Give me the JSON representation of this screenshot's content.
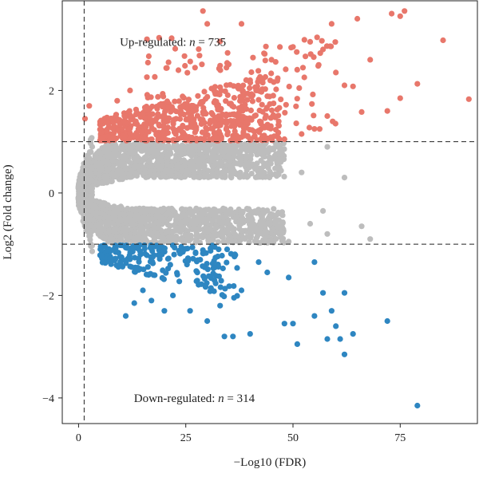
{
  "chart_data": {
    "type": "scatter",
    "title": "",
    "xlabel": "−Log10 (FDR)",
    "ylabel": "Log2 (Fold change)",
    "xlim": [
      -3.8,
      93.0
    ],
    "ylim": [
      -4.5,
      3.75
    ],
    "x_ticks": [
      0,
      25,
      50,
      75
    ],
    "x_tick_labels": [
      "0",
      "25",
      "50",
      "75"
    ],
    "y_ticks": [
      2,
      0,
      -2,
      -4
    ],
    "y_tick_labels": [
      "2",
      "0",
      "−2",
      "−4"
    ],
    "grid": false,
    "legend": "none",
    "thresholds": {
      "fold_change_log2": [
        -1,
        1
      ],
      "fdr_neg_log10": 1.3
    },
    "annotations": {
      "up": {
        "prefix": "Up-regulated: ",
        "n_symbol": "n",
        "equals": " = ",
        "count": "735"
      },
      "down": {
        "prefix": "Down-regulated: ",
        "n_symbol": "n",
        "equals": " = ",
        "count": "314"
      }
    },
    "colors": {
      "up": "#e8776b",
      "down": "#2e86c1",
      "not_significant": "#bdbdbd",
      "threshold_line": "#222222",
      "axis": "#222222"
    },
    "series": [
      {
        "key": "up",
        "count": 735,
        "highlighted_points": [
          [
            29,
            3.55
          ],
          [
            30,
            3.3
          ],
          [
            38,
            3.3
          ],
          [
            76,
            3.55
          ],
          [
            75,
            3.45
          ],
          [
            73,
            3.5
          ],
          [
            65,
            3.4
          ],
          [
            59,
            3.3
          ],
          [
            85,
            2.98
          ],
          [
            91,
            1.83
          ],
          [
            79,
            2.13
          ],
          [
            75,
            1.85
          ],
          [
            64,
            2.08
          ],
          [
            68,
            2.6
          ],
          [
            72,
            1.6
          ],
          [
            66,
            1.58
          ],
          [
            50,
            2.85
          ],
          [
            54,
            2.95
          ],
          [
            57,
            2.8
          ],
          [
            56,
            2.5
          ],
          [
            60,
            2.35
          ],
          [
            62,
            2.1
          ],
          [
            58,
            1.5
          ],
          [
            1.5,
            1.45
          ],
          [
            2.5,
            1.7
          ],
          [
            9,
            1.8
          ],
          [
            12,
            2.0
          ],
          [
            48,
            1.05
          ],
          [
            52,
            1.15
          ],
          [
            55,
            1.25
          ],
          [
            45,
            2.6
          ],
          [
            40,
            2.2
          ]
        ],
        "bulk_region": {
          "x_range": [
            5,
            47
          ],
          "y_range": [
            1.0,
            2.4
          ]
        }
      },
      {
        "key": "down",
        "count": 314,
        "highlighted_points": [
          [
            79,
            -4.15
          ],
          [
            62,
            -3.15
          ],
          [
            51,
            -2.95
          ],
          [
            58,
            -2.85
          ],
          [
            61,
            -2.85
          ],
          [
            64,
            -2.75
          ],
          [
            72,
            -2.5
          ],
          [
            60,
            -2.6
          ],
          [
            50,
            -2.55
          ],
          [
            48,
            -2.55
          ],
          [
            55,
            -2.4
          ],
          [
            40,
            -2.75
          ],
          [
            36,
            -2.8
          ],
          [
            34,
            -2.8
          ],
          [
            11,
            -2.4
          ],
          [
            62,
            -1.95
          ],
          [
            57,
            -1.95
          ],
          [
            59,
            -2.3
          ],
          [
            55,
            -1.35
          ],
          [
            49,
            -1.65
          ],
          [
            44,
            -1.55
          ],
          [
            42,
            -1.35
          ],
          [
            38,
            -1.9
          ],
          [
            33,
            -2.2
          ],
          [
            30,
            -2.5
          ],
          [
            26,
            -2.3
          ],
          [
            22,
            -2.0
          ],
          [
            20,
            -2.3
          ],
          [
            17,
            -2.1
          ],
          [
            15,
            -1.9
          ],
          [
            13,
            -2.15
          ]
        ],
        "bulk_region": {
          "x_range": [
            5,
            35
          ],
          "y_range": [
            -2.0,
            -1.0
          ]
        }
      },
      {
        "key": "not_significant",
        "count": null,
        "highlighted_points": [
          [
            62,
            0.3
          ],
          [
            66,
            -0.65
          ],
          [
            68,
            -0.9
          ],
          [
            58,
            0.9
          ],
          [
            58,
            -0.8
          ],
          [
            49,
            -0.95
          ],
          [
            57,
            -0.35
          ],
          [
            52,
            0.4
          ],
          [
            54,
            -0.6
          ],
          [
            44,
            0.55
          ],
          [
            44,
            -0.85
          ],
          [
            46,
            0.75
          ]
        ],
        "bulk_region": {
          "x_range": [
            0,
            52
          ],
          "y_range": [
            -1.0,
            1.0
          ]
        }
      }
    ]
  }
}
